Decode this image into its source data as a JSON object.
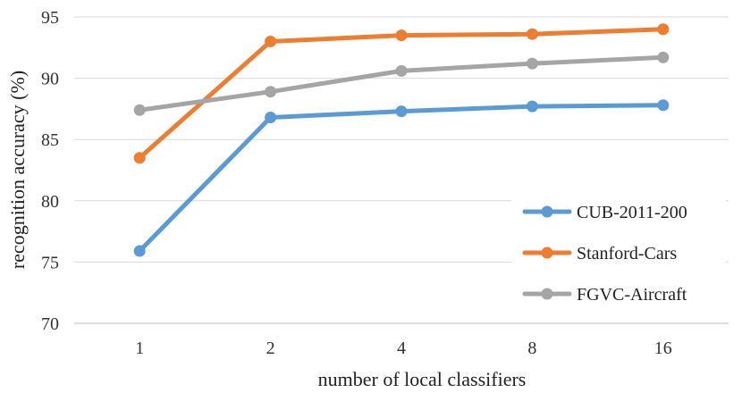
{
  "chart_data": {
    "type": "line",
    "categories": [
      "1",
      "2",
      "4",
      "8",
      "16"
    ],
    "series": [
      {
        "name": "CUB-2011-200",
        "values": [
          75.9,
          86.8,
          87.3,
          87.7,
          87.8
        ],
        "color": "#5b9bd5"
      },
      {
        "name": "Stanford-Cars",
        "values": [
          83.5,
          93.0,
          93.5,
          93.6,
          94.0
        ],
        "color": "#ed7d31"
      },
      {
        "name": "FGVC-Aircraft",
        "values": [
          87.4,
          88.9,
          90.6,
          91.2,
          91.7
        ],
        "color": "#a5a5a5"
      }
    ],
    "yticks": [
      "70",
      "75",
      "80",
      "85",
      "90",
      "95"
    ],
    "ylim": [
      70,
      95
    ],
    "xlabel": "number of local classifiers",
    "ylabel": "recognition accuracy (%)",
    "grid": true,
    "legend_position": "bottom-right"
  }
}
